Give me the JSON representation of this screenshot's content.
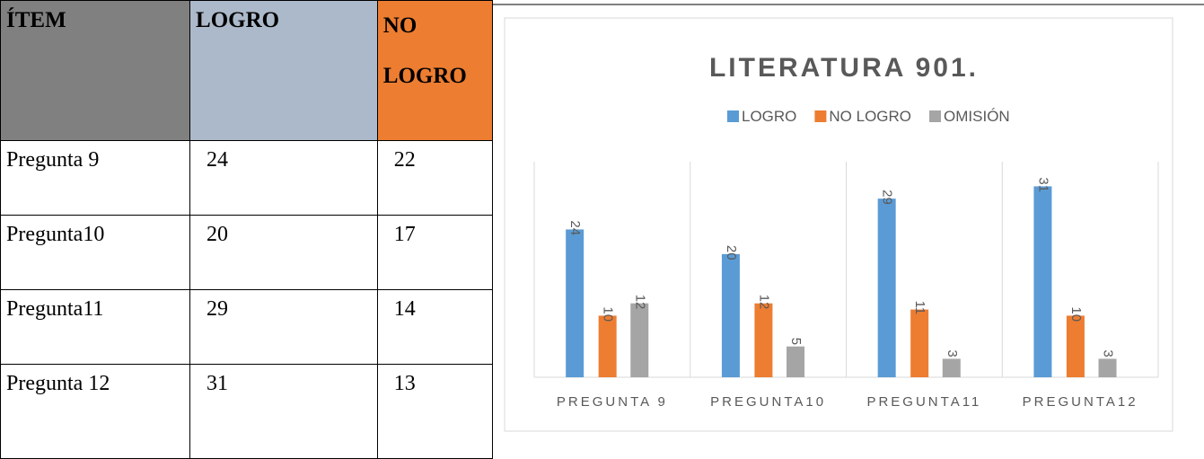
{
  "table": {
    "header": [
      "ÍTEM",
      "LOGRO",
      "NO LOGRO"
    ],
    "rows": [
      [
        "Pregunta 9",
        24,
        22
      ],
      [
        "Pregunta10",
        20,
        17
      ],
      [
        "Pregunta11",
        29,
        14
      ],
      [
        "Pregunta 12",
        31,
        13
      ]
    ]
  },
  "chart_data": {
    "type": "bar",
    "title": "LITERATURA 901.",
    "categories": [
      "PREGUNTA 9",
      "PREGUNTA10",
      "PREGUNTA11",
      "PREGUNTA12"
    ],
    "series": [
      {
        "name": "LOGRO",
        "color": "#5b9bd5",
        "values": [
          24,
          20,
          29,
          31
        ]
      },
      {
        "name": "NO LOGRO",
        "color": "#ed7d31",
        "values": [
          10,
          12,
          11,
          10
        ]
      },
      {
        "name": "OMISIÓN",
        "color": "#a5a5a5",
        "values": [
          12,
          5,
          3,
          3
        ]
      }
    ],
    "ylim": [
      0,
      35
    ],
    "legend": "top"
  }
}
